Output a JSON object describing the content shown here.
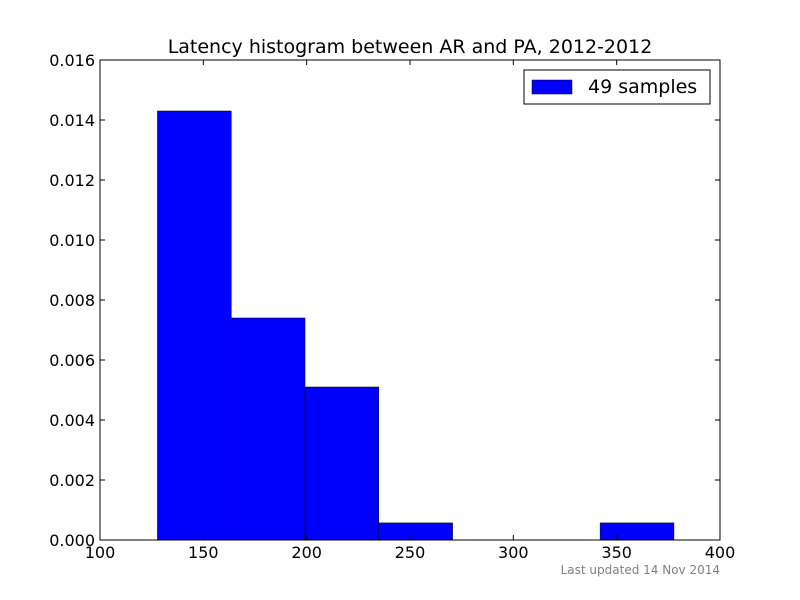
{
  "chart_data": {
    "type": "bar",
    "title": "Latency histogram between AR and PA, 2012-2012",
    "xlabel": "",
    "ylabel": "",
    "xlim": [
      100,
      400
    ],
    "ylim": [
      0,
      0.016
    ],
    "x_ticks": [
      100,
      150,
      200,
      250,
      300,
      350,
      400
    ],
    "x_tick_labels": [
      "100",
      "150",
      "200",
      "250",
      "300",
      "350",
      "400"
    ],
    "y_ticks": [
      0,
      0.002,
      0.004,
      0.006,
      0.008,
      0.01,
      0.012,
      0.014,
      0.016
    ],
    "y_tick_labels": [
      "0.000",
      "0.002",
      "0.004",
      "0.006",
      "0.008",
      "0.010",
      "0.012",
      "0.014",
      "0.016"
    ],
    "bins": [
      {
        "start": 127.8,
        "end": 163.5,
        "value": 0.0143
      },
      {
        "start": 163.5,
        "end": 199.2,
        "value": 0.0074
      },
      {
        "start": 199.2,
        "end": 234.9,
        "value": 0.0051
      },
      {
        "start": 234.9,
        "end": 270.6,
        "value": 0.00057
      },
      {
        "start": 270.6,
        "end": 306.3,
        "value": 0
      },
      {
        "start": 306.3,
        "end": 342.0,
        "value": 0
      },
      {
        "start": 342.0,
        "end": 377.7,
        "value": 0.00057
      }
    ],
    "series": [
      {
        "name": "49 samples",
        "color": "#0000ff"
      }
    ],
    "legend": "top-right",
    "grid": false
  },
  "footer": {
    "text": "Last updated 14 Nov 2014"
  }
}
